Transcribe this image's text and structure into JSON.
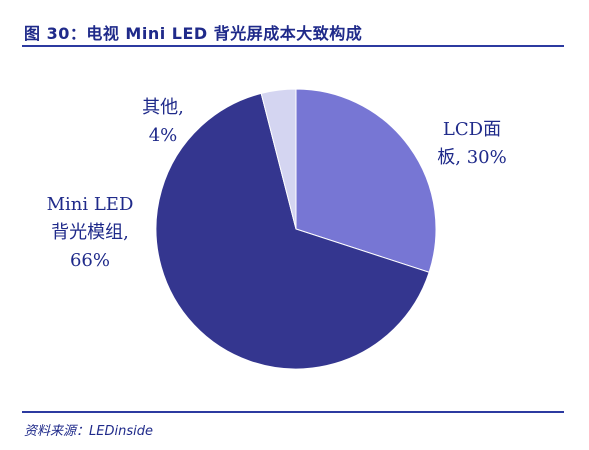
{
  "header": {
    "title": "图 30：电视 Mini LED 背光屏成本大致构成"
  },
  "footer": {
    "source": "资料来源：LEDinside"
  },
  "chart_data": {
    "type": "pie",
    "slices": [
      {
        "label_lines": [
          "LCD面",
          "板, 30%"
        ],
        "value": 30,
        "color": "#7776d4"
      },
      {
        "label_lines": [
          "Mini LED",
          "背光模组,",
          "66%"
        ],
        "value": 66,
        "color": "#34368f"
      },
      {
        "label_lines": [
          "其他,",
          "4%"
        ],
        "value": 4,
        "color": "#d4d5f1"
      }
    ],
    "start": "12 o'clock",
    "direction": "clockwise"
  }
}
